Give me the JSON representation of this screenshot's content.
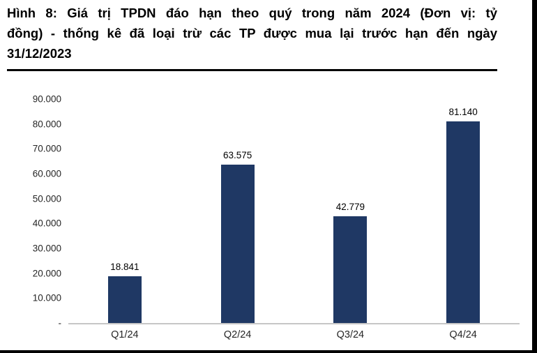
{
  "caption": {
    "text": "Hình 8: Giá trị TPDN đáo hạn theo quý trong năm 2024 (Đơn vị: tỷ đồng) - thống kê đã loại trừ các TP được mua lại trước hạn đến ngày 31/12/2023",
    "lines": [
      "Hình 8: Giá trị TPDN đáo hạn theo quý trong năm 2024 (Đơn vị: tỷ",
      "đồng) - thống kê đã loại trừ các TP được mua lại trước hạn đến ngày",
      "31/12/2023"
    ]
  },
  "chart_data": {
    "type": "bar",
    "title": "Hình 8: Giá trị TPDN đáo hạn theo quý trong năm 2024 (Đơn vị: tỷ đồng) - thống kê đã loại trừ các TP được mua lại trước hạn đến ngày 31/12/2023",
    "categories": [
      "Q1/24",
      "Q2/24",
      "Q3/24",
      "Q4/24"
    ],
    "values": [
      18841,
      63575,
      42779,
      81140
    ],
    "value_labels": [
      "18.841",
      "63.575",
      "42.779",
      "81.140"
    ],
    "xlabel": "",
    "ylabel": "",
    "ylim": [
      0,
      90000
    ],
    "y_ticks": [
      {
        "value": 90000,
        "label": "90.000"
      },
      {
        "value": 80000,
        "label": "80.000"
      },
      {
        "value": 70000,
        "label": "70.000"
      },
      {
        "value": 60000,
        "label": "60.000"
      },
      {
        "value": 50000,
        "label": "50.000"
      },
      {
        "value": 40000,
        "label": "40.000"
      },
      {
        "value": 30000,
        "label": "30.000"
      },
      {
        "value": 20000,
        "label": "20.000"
      },
      {
        "value": 10000,
        "label": "10.000"
      },
      {
        "value": 0,
        "label": "-"
      }
    ],
    "grid": false,
    "legend": "none",
    "bar_color": "#1F3864"
  },
  "colors": {
    "bar": "#1F3864",
    "axis_line": "#C6C6C6",
    "border": "#000000",
    "text": "#000000"
  }
}
